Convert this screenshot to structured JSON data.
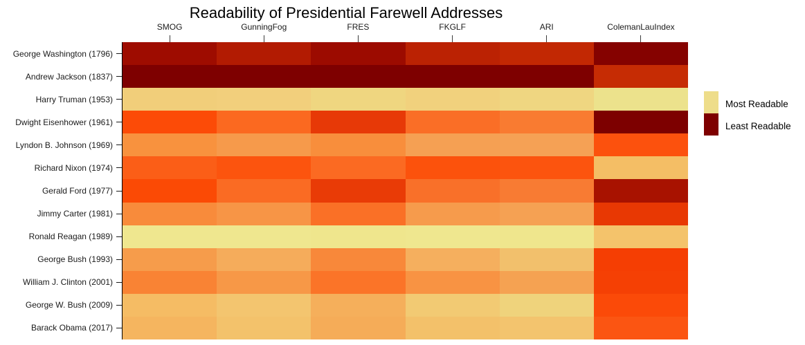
{
  "chart_data": {
    "type": "heatmap",
    "title": "Readability of Presidential Farewell Addresses",
    "columns": [
      "SMOG",
      "GunningFog",
      "FRES",
      "FKGLF",
      "ARI",
      "ColemanLauIndex"
    ],
    "rows": [
      "George Washington (1796)",
      "Andrew Jackson (1837)",
      "Harry Truman (1953)",
      "Dwight Eisenhower (1961)",
      "Lyndon B. Johnson (1969)",
      "Richard Nixon (1974)",
      "Gerald Ford (1977)",
      "Jimmy Carter (1981)",
      "Ronald Reagan (1989)",
      "George Bush (1993)",
      "William J. Clinton (2001)",
      "George W. Bush (2009)",
      "Barack Obama (2017)"
    ],
    "legend": {
      "position": "right",
      "entries": [
        {
          "label": "Most Readable",
          "color": "#EEDD8A"
        },
        {
          "label": "Least Readable",
          "color": "#7E0000"
        }
      ]
    },
    "cell_colors": [
      [
        "#9E0C00",
        "#B21B02",
        "#9C0B00",
        "#BB2203",
        "#C22803",
        "#850200"
      ],
      [
        "#7E0000",
        "#7E0000",
        "#7E0000",
        "#7E0000",
        "#7E0000",
        "#C62C04"
      ],
      [
        "#F1CE7A",
        "#F2CF7C",
        "#EFD680",
        "#F1D17D",
        "#EFD681",
        "#ECE28C"
      ],
      [
        "#FC4B07",
        "#FB6920",
        "#E73907",
        "#FA6E26",
        "#F97B31",
        "#7D0000"
      ],
      [
        "#F8923E",
        "#F69A4B",
        "#F88E3C",
        "#F5A053",
        "#F5A155",
        "#FC510D"
      ],
      [
        "#FB5E17",
        "#FC540E",
        "#FB6A22",
        "#FC520C",
        "#FC540E",
        "#F4BE65"
      ],
      [
        "#FB4A05",
        "#FA6B23",
        "#E93B06",
        "#F97029",
        "#F87B33",
        "#A81200"
      ],
      [
        "#F88B3B",
        "#F79546",
        "#FA7026",
        "#F69B4C",
        "#F5A153",
        "#E83803"
      ],
      [
        "#EFE78F",
        "#EFE78F",
        "#EFE68D",
        "#EFE78F",
        "#EFE68D",
        "#F4C36B"
      ],
      [
        "#F69C4B",
        "#F5AC5B",
        "#F8883A",
        "#F5AF5E",
        "#F2C06C",
        "#F53E03"
      ],
      [
        "#F98334",
        "#F79847",
        "#FB7428",
        "#F89343",
        "#F5A252",
        "#F54004"
      ],
      [
        "#F5BC64",
        "#F3C56F",
        "#F5AF5B",
        "#F2CA73",
        "#EFD37C",
        "#FB4A08"
      ],
      [
        "#F5B55F",
        "#F3C26B",
        "#F5AC58",
        "#F3C16A",
        "#F3C46E",
        "#FB5512"
      ]
    ]
  }
}
